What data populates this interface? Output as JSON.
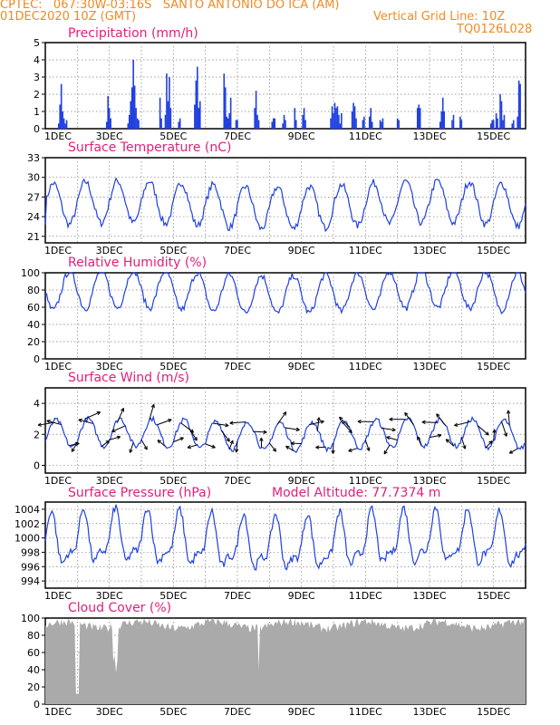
{
  "header": {
    "line1_left": "CPTEC:   067:30W-03:16S   SANTO ANTONIO DO ICA (AM)",
    "line2_left": "01DEC2020 10Z (GMT)",
    "line2_right": "Vertical Grid Line: 10Z",
    "line3_right": "TQ0126L028"
  },
  "colors": {
    "header": "#f08a24",
    "panel_title": "#e0207a",
    "series": "#2040e0",
    "wind_arrows": "#000000",
    "cloud_fill": "#aaaaaa",
    "grid": "#808080"
  },
  "x_axis": {
    "tick_labels": [
      "1DEC",
      "3DEC",
      "5DEC",
      "7DEC",
      "9DEC",
      "11DEC",
      "13DEC",
      "15DEC"
    ],
    "start_tick_label": "1DEC",
    "hours_total": 360,
    "vertical_gridline_every_hours": 24
  },
  "chart_data": [
    {
      "type": "bar",
      "id": "precip",
      "title": "Precipitation (mm/h)",
      "ylim": [
        0,
        5
      ],
      "yticks": [
        "0",
        "1",
        "2",
        "3",
        "4",
        "5"
      ],
      "grid": true,
      "x_unit": "hours since 01DEC2020 10Z",
      "bars": [
        [
          10,
          0.3
        ],
        [
          11,
          1.4
        ],
        [
          12,
          2.6
        ],
        [
          13,
          1.0
        ],
        [
          14,
          0.6
        ],
        [
          15,
          0.3
        ],
        [
          16,
          0.5
        ],
        [
          46,
          0.4
        ],
        [
          47,
          1.9
        ],
        [
          48,
          1.2
        ],
        [
          49,
          0.6
        ],
        [
          62,
          0.3
        ],
        [
          63,
          0.8
        ],
        [
          64,
          1.6
        ],
        [
          65,
          2.4
        ],
        [
          66,
          4.0
        ],
        [
          67,
          2.5
        ],
        [
          68,
          1.2
        ],
        [
          69,
          0.6
        ],
        [
          70,
          0.5
        ],
        [
          86,
          1.8
        ],
        [
          87,
          0.6
        ],
        [
          90,
          0.8
        ],
        [
          91,
          3.2
        ],
        [
          92,
          1.6
        ],
        [
          93,
          3.0
        ],
        [
          94,
          1.2
        ],
        [
          100,
          0.4
        ],
        [
          101,
          0.6
        ],
        [
          112,
          1.4
        ],
        [
          113,
          2.8
        ],
        [
          114,
          3.6
        ],
        [
          115,
          1.2
        ],
        [
          116,
          1.6
        ],
        [
          134,
          3.2
        ],
        [
          135,
          2.4
        ],
        [
          136,
          0.7
        ],
        [
          137,
          0.6
        ],
        [
          138,
          0.9
        ],
        [
          139,
          1.8
        ],
        [
          143,
          0.5
        ],
        [
          144,
          0.5
        ],
        [
          157,
          1.2
        ],
        [
          158,
          2.2
        ],
        [
          159,
          0.8
        ],
        [
          160,
          0.5
        ],
        [
          170,
          0.4
        ],
        [
          171,
          0.6
        ],
        [
          172,
          0.6
        ],
        [
          178,
          0.3
        ],
        [
          179,
          0.8
        ],
        [
          180,
          0.5
        ],
        [
          187,
          1.2
        ],
        [
          188,
          0.5
        ],
        [
          193,
          0.8
        ],
        [
          194,
          1.2
        ],
        [
          195,
          0.5
        ],
        [
          214,
          0.6
        ],
        [
          215,
          1.3
        ],
        [
          216,
          0.9
        ],
        [
          217,
          1.5
        ],
        [
          218,
          1.2
        ],
        [
          219,
          1.3
        ],
        [
          220,
          0.8
        ],
        [
          221,
          0.3
        ],
        [
          222,
          0.9
        ],
        [
          230,
          1.0
        ],
        [
          231,
          1.5
        ],
        [
          232,
          1.3
        ],
        [
          233,
          0.6
        ],
        [
          238,
          0.5
        ],
        [
          239,
          0.7
        ],
        [
          243,
          0.7
        ],
        [
          244,
          1.2
        ],
        [
          245,
          0.4
        ],
        [
          251,
          0.5
        ],
        [
          252,
          0.4
        ],
        [
          253,
          0.6
        ],
        [
          264,
          0.6
        ],
        [
          265,
          0.5
        ],
        [
          279,
          1.2
        ],
        [
          280,
          1.4
        ],
        [
          281,
          1.2
        ],
        [
          296,
          0.4
        ],
        [
          297,
          1.0
        ],
        [
          298,
          1.8
        ],
        [
          299,
          1.0
        ],
        [
          305,
          0.5
        ],
        [
          306,
          0.8
        ],
        [
          311,
          0.7
        ],
        [
          312,
          0.5
        ],
        [
          334,
          0.3
        ],
        [
          335,
          0.5
        ],
        [
          336,
          0.5
        ],
        [
          338,
          0.9
        ],
        [
          339,
          0.6
        ],
        [
          341,
          2.0
        ],
        [
          342,
          1.6
        ],
        [
          343,
          0.5
        ],
        [
          344,
          0.8
        ],
        [
          350,
          0.3
        ],
        [
          351,
          0.5
        ],
        [
          354,
          0.7
        ],
        [
          355,
          2.8
        ],
        [
          356,
          2.6
        ]
      ]
    },
    {
      "type": "line",
      "id": "temp",
      "title": "Surface Temperature (nC)",
      "ylim": [
        20,
        33
      ],
      "yticks": [
        "21",
        "24",
        "27",
        "30",
        "33"
      ],
      "ytick_values": [
        21,
        24,
        27,
        30,
        33
      ],
      "grid": true,
      "mean": 25.8,
      "amp": 3.2,
      "peak_hour": 6,
      "first_hour_override": 22.8
    },
    {
      "type": "line",
      "id": "rh",
      "title": "Relative Humidity (%)",
      "ylim": [
        0,
        100
      ],
      "yticks": [
        "0",
        "20",
        "40",
        "60",
        "80",
        "100"
      ],
      "ytick_values": [
        0,
        20,
        40,
        60,
        80,
        100
      ],
      "grid": true,
      "mean": 78,
      "amp": -22,
      "peak_hour": 6,
      "clamp_max": 100
    },
    {
      "type": "line",
      "id": "wind",
      "title": "Surface Wind (m/s)",
      "ylim": [
        -0.5,
        5
      ],
      "yticks": [
        "0",
        "2",
        "4"
      ],
      "ytick_values": [
        0,
        2,
        4
      ],
      "grid": true,
      "mean": 2.0,
      "amp": 0.9,
      "peak_hour": 8,
      "arrows_every_hours": 6
    },
    {
      "type": "line",
      "id": "pres",
      "title": "Surface Pressure (hPa)",
      "subtitle": "Model Altitude: 77.7374 m",
      "ylim": [
        993,
        1005
      ],
      "yticks": [
        "994",
        "996",
        "998",
        "1000",
        "1002",
        "1004"
      ],
      "ytick_values": [
        994,
        996,
        998,
        1000,
        1002,
        1004
      ],
      "grid": true,
      "mean": 999.3,
      "amp": 3.2,
      "peak_hour": 4,
      "semidiurnal": true
    },
    {
      "type": "area",
      "id": "cloud",
      "title": "Cloud Cover (%)",
      "ylim": [
        0,
        100
      ],
      "yticks": [
        "0",
        "20",
        "40",
        "60",
        "80",
        "100"
      ],
      "ytick_values": [
        0,
        20,
        40,
        60,
        80,
        100
      ],
      "grid": true,
      "mean": 92
    }
  ]
}
